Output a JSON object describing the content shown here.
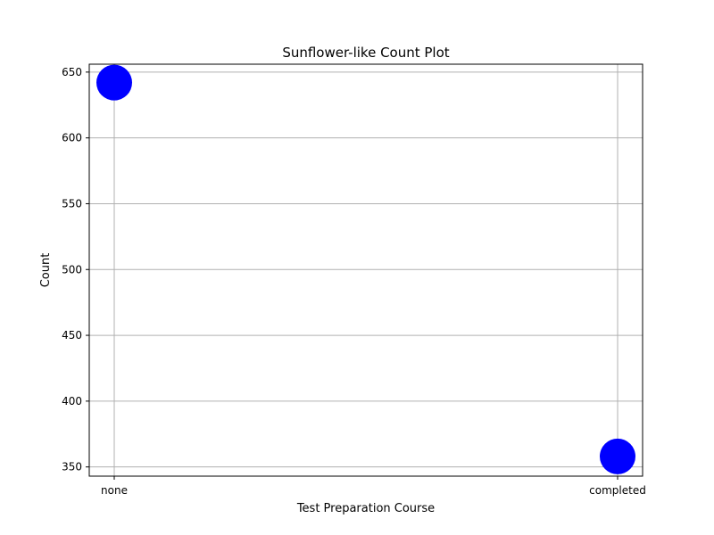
{
  "chart_data": {
    "type": "scatter",
    "title": "Sunflower-like Count Plot",
    "xlabel": "Test Preparation Course",
    "ylabel": "Count",
    "categories": [
      "none",
      "completed"
    ],
    "values": [
      642,
      358
    ],
    "ylim": [
      343,
      656
    ],
    "yticks": [
      350,
      400,
      450,
      500,
      550,
      600,
      650
    ],
    "grid": true,
    "marker_color": "#0000ff"
  }
}
